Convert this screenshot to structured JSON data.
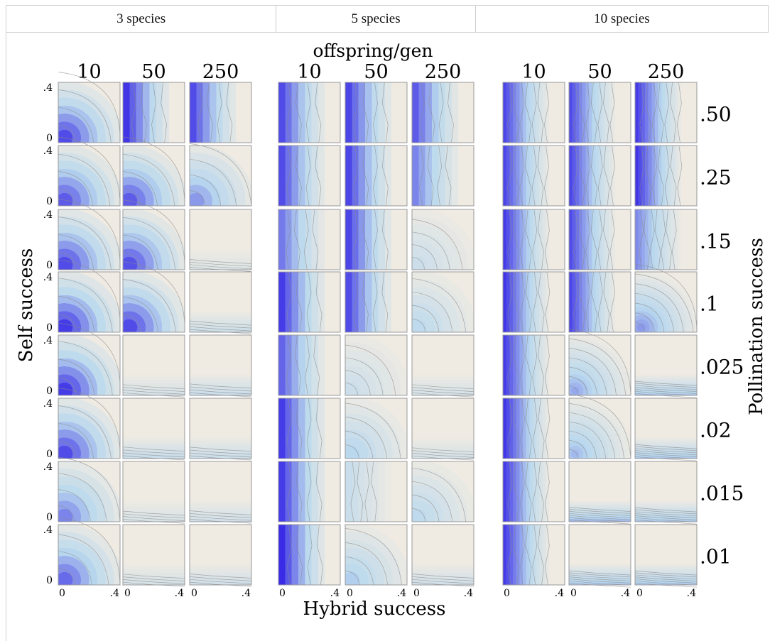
{
  "header": {
    "columns": [
      "3 species",
      "5 species",
      "10 species"
    ]
  },
  "chart_data": {
    "type": "contour",
    "title": "",
    "top_label": "offspring/gen",
    "xlabel": "Hybrid success",
    "ylabel": "Self success",
    "right_label": "Pollination success",
    "species_groups": [
      "3 species",
      "5 species",
      "10 species"
    ],
    "offspring_levels": [
      "10",
      "50",
      "250"
    ],
    "pollination_levels": [
      ".50",
      ".25",
      ".15",
      ".1",
      ".025",
      ".02",
      ".015",
      ".01"
    ],
    "x_tick_labels": [
      "0",
      ".4"
    ],
    "y_tick_labels": [
      ".4",
      "0"
    ],
    "x_range": [
      0,
      0.4
    ],
    "y_range": [
      0,
      0.4
    ],
    "colors": {
      "low": "#f0ebe2",
      "mid": "#b9d8ee",
      "high": "#3a2ce6",
      "contour_line": "#8a8a8a",
      "panel_border": "#9a9a9a"
    }
  }
}
